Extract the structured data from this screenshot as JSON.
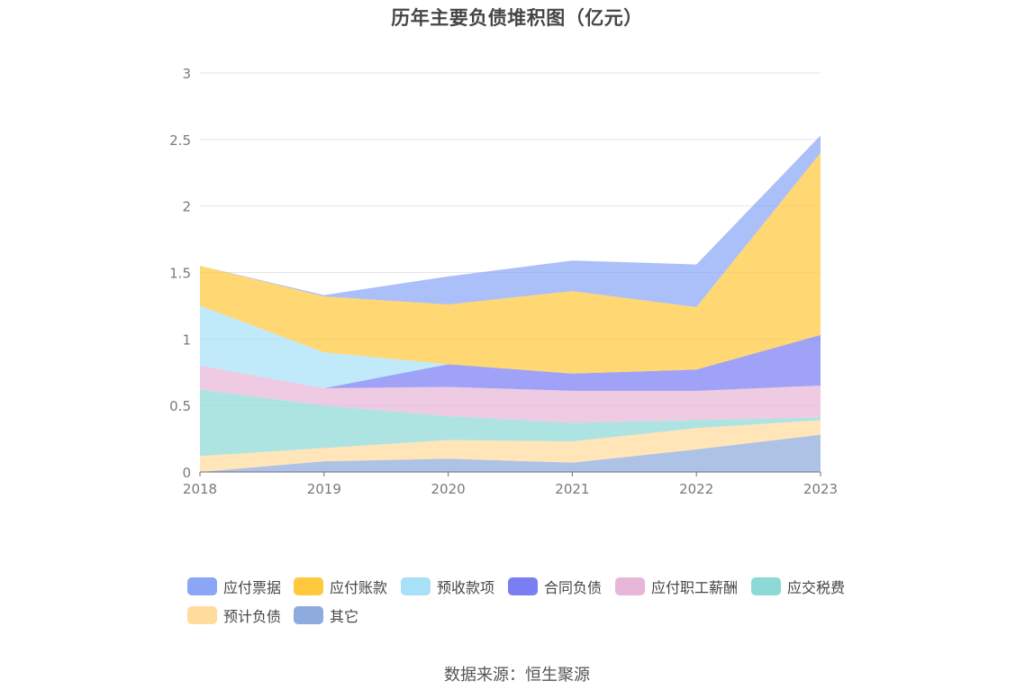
{
  "chart_data": {
    "type": "area",
    "stacked": true,
    "title": "历年主要负债堆积图（亿元）",
    "x": [
      "2018",
      "2019",
      "2020",
      "2021",
      "2022",
      "2023"
    ],
    "ylim": [
      0,
      3
    ],
    "yticks": [
      "0",
      "0.5",
      "1",
      "1.5",
      "2",
      "2.5",
      "3"
    ],
    "grid": true,
    "legend_position": "bottom",
    "series": [
      {
        "name": "其它",
        "color": "#8faadc",
        "values": [
          0.0,
          0.08,
          0.1,
          0.07,
          0.17,
          0.28
        ]
      },
      {
        "name": "预计负债",
        "color": "#ffdb9c",
        "values": [
          0.12,
          0.1,
          0.14,
          0.16,
          0.16,
          0.11
        ]
      },
      {
        "name": "应交税费",
        "color": "#8dd9d6",
        "values": [
          0.5,
          0.32,
          0.18,
          0.14,
          0.06,
          0.02
        ]
      },
      {
        "name": "应付职工薪酬",
        "color": "#e8b6d8",
        "values": [
          0.18,
          0.13,
          0.22,
          0.24,
          0.22,
          0.24
        ]
      },
      {
        "name": "合同负债",
        "color": "#7a7ef2",
        "values": [
          0.0,
          0.0,
          0.17,
          0.13,
          0.16,
          0.38
        ]
      },
      {
        "name": "预收款项",
        "color": "#a8e0f8",
        "values": [
          0.45,
          0.27,
          0.0,
          0.0,
          0.0,
          0.0
        ]
      },
      {
        "name": "应付账款",
        "color": "#ffc93d",
        "values": [
          0.3,
          0.42,
          0.45,
          0.62,
          0.47,
          1.37
        ]
      },
      {
        "name": "应付票据",
        "color": "#8aa6f5",
        "values": [
          0.0,
          0.01,
          0.21,
          0.23,
          0.32,
          0.13
        ]
      }
    ]
  },
  "legend": {
    "items": [
      {
        "label": "应付票据",
        "color": "#8aa6f5"
      },
      {
        "label": "应付账款",
        "color": "#ffc93d"
      },
      {
        "label": "预收款项",
        "color": "#a8e0f8"
      },
      {
        "label": "合同负债",
        "color": "#7a7ef2"
      },
      {
        "label": "应付职工薪酬",
        "color": "#e8b6d8"
      },
      {
        "label": "应交税费",
        "color": "#8dd9d6"
      },
      {
        "label": "预计负债",
        "color": "#ffdb9c"
      },
      {
        "label": "其它",
        "color": "#8faadc"
      }
    ]
  },
  "source": "数据来源：恒生聚源"
}
